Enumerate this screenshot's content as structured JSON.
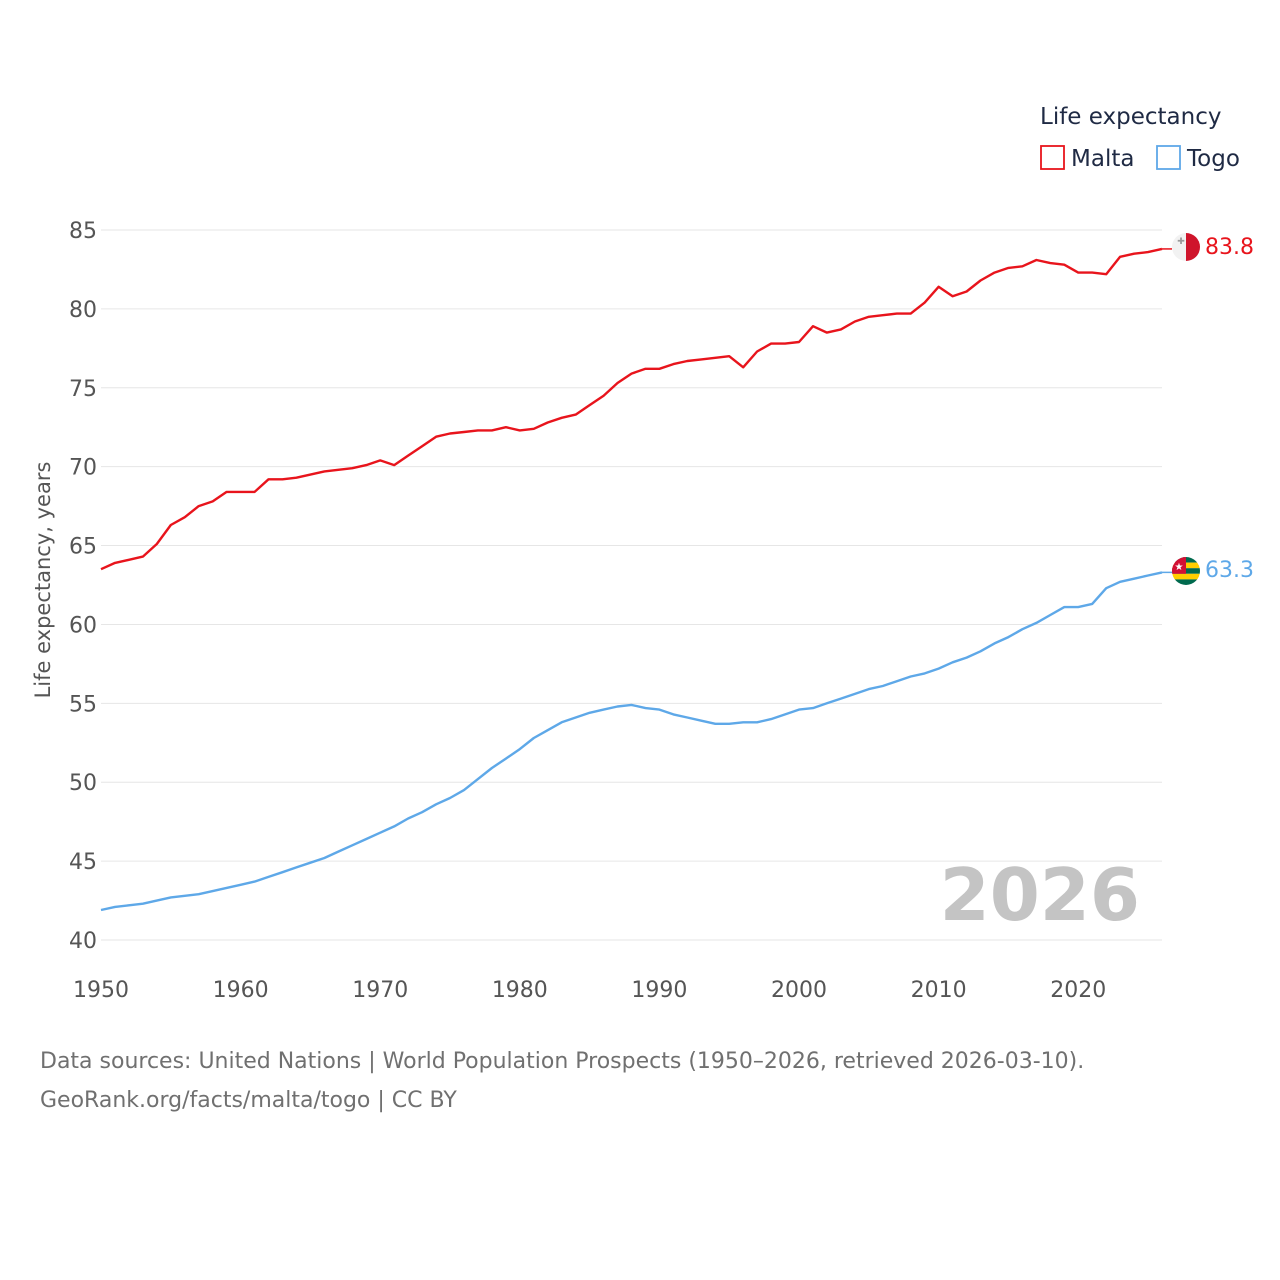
{
  "chart_data": {
    "type": "line",
    "title": "",
    "xlabel": "",
    "ylabel": "Life expectancy, years",
    "xlim": [
      1950,
      2026
    ],
    "ylim": [
      40,
      85
    ],
    "y_ticks": [
      40,
      45,
      50,
      55,
      60,
      65,
      70,
      75,
      80,
      85
    ],
    "x_ticks": [
      1950,
      1960,
      1970,
      1980,
      1990,
      2000,
      2010,
      2020
    ],
    "current_year": "2026",
    "legend": {
      "title": "Life expectancy",
      "placement": "top-right"
    },
    "x": [
      1950,
      1951,
      1952,
      1953,
      1954,
      1955,
      1956,
      1957,
      1958,
      1959,
      1960,
      1961,
      1962,
      1963,
      1964,
      1965,
      1966,
      1967,
      1968,
      1969,
      1970,
      1971,
      1972,
      1973,
      1974,
      1975,
      1976,
      1977,
      1978,
      1979,
      1980,
      1981,
      1982,
      1983,
      1984,
      1985,
      1986,
      1987,
      1988,
      1989,
      1990,
      1991,
      1992,
      1993,
      1994,
      1995,
      1996,
      1997,
      1998,
      1999,
      2000,
      2001,
      2002,
      2003,
      2004,
      2005,
      2006,
      2007,
      2008,
      2009,
      2010,
      2011,
      2012,
      2013,
      2014,
      2015,
      2016,
      2017,
      2018,
      2019,
      2020,
      2021,
      2022,
      2023,
      2024,
      2025,
      2026
    ],
    "series": [
      {
        "name": "Malta",
        "color": "#e8141c",
        "end_label": "83.8",
        "values": [
          63.5,
          63.9,
          64.1,
          64.3,
          65.1,
          66.3,
          66.8,
          67.5,
          67.8,
          68.4,
          68.4,
          68.4,
          69.2,
          69.2,
          69.3,
          69.5,
          69.7,
          69.8,
          69.9,
          70.1,
          70.4,
          70.1,
          70.7,
          71.3,
          71.9,
          72.1,
          72.2,
          72.3,
          72.3,
          72.5,
          72.3,
          72.4,
          72.8,
          73.1,
          73.3,
          73.9,
          74.5,
          75.3,
          75.9,
          76.2,
          76.2,
          76.5,
          76.7,
          76.8,
          76.9,
          77.0,
          76.3,
          77.3,
          77.8,
          77.8,
          77.9,
          78.9,
          78.5,
          78.7,
          79.2,
          79.5,
          79.6,
          79.7,
          79.7,
          80.4,
          81.4,
          80.8,
          81.1,
          81.8,
          82.3,
          82.6,
          82.7,
          83.1,
          82.9,
          82.8,
          82.3,
          82.3,
          82.2,
          83.3,
          83.5,
          83.6,
          83.8
        ]
      },
      {
        "name": "Togo",
        "color": "#5ea8e8",
        "end_label": "63.3",
        "values": [
          41.9,
          42.1,
          42.2,
          42.3,
          42.5,
          42.7,
          42.8,
          42.9,
          43.1,
          43.3,
          43.5,
          43.7,
          44.0,
          44.3,
          44.6,
          44.9,
          45.2,
          45.6,
          46.0,
          46.4,
          46.8,
          47.2,
          47.7,
          48.1,
          48.6,
          49.0,
          49.5,
          50.2,
          50.9,
          51.5,
          52.1,
          52.8,
          53.3,
          53.8,
          54.1,
          54.4,
          54.6,
          54.8,
          54.9,
          54.7,
          54.6,
          54.3,
          54.1,
          53.9,
          53.7,
          53.7,
          53.8,
          53.8,
          54.0,
          54.3,
          54.6,
          54.7,
          55.0,
          55.3,
          55.6,
          55.9,
          56.1,
          56.4,
          56.7,
          56.9,
          57.2,
          57.6,
          57.9,
          58.3,
          58.8,
          59.2,
          59.7,
          60.1,
          60.6,
          61.1,
          61.1,
          61.3,
          62.3,
          62.7,
          62.9,
          63.1,
          63.3
        ]
      }
    ]
  },
  "source": {
    "line1": "Data sources: United Nations | World Population Prospects (1950–2026, retrieved 2026-03-10).",
    "line2": "GeoRank.org/facts/malta/togo | CC BY"
  }
}
